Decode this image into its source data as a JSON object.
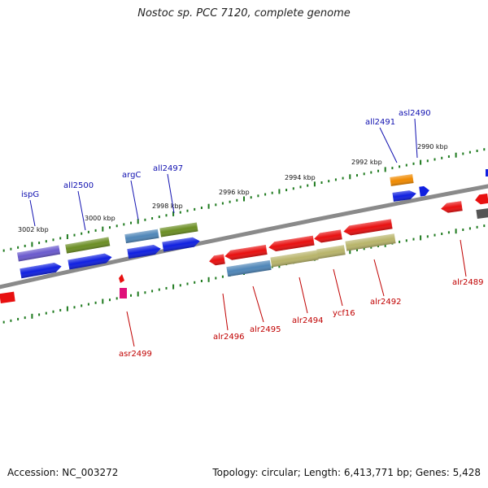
{
  "title": "Nostoc sp. PCC 7120, complete genome",
  "footer": {
    "accession": "Accession: NC_003272",
    "summary": "Topology: circular; Length: 6,413,771 bp; Genes: 5,428"
  },
  "colors": {
    "backbone": "#8a8a8a",
    "tick": "#1e7a1e",
    "label_forward": "#1010b0",
    "label_reverse": "#c00000",
    "gene_red": "#e81010",
    "gene_blue": "#1020e0",
    "gene_olive": "#6b8e23",
    "gene_steel": "#4f86b8",
    "gene_purple": "#6a5acd",
    "gene_khaki": "#b8b46a",
    "gene_orange": "#f08a00",
    "gene_gray": "#555555",
    "gene_magenta": "#e0107a"
  },
  "scale_labels": [
    "3002 kbp",
    "3000 kbp",
    "2998 kbp",
    "2996 kbp",
    "2994 kbp",
    "2992 kbp",
    "2990 kbp"
  ],
  "gene_labels_top": [
    "ispG",
    "all2500",
    "argC",
    "all2497",
    "all2491",
    "asl2490"
  ],
  "gene_labels_bottom": [
    "asr2499",
    "alr2496",
    "alr2495",
    "alr2494",
    "ycf16",
    "alr2492",
    "alr2489"
  ]
}
